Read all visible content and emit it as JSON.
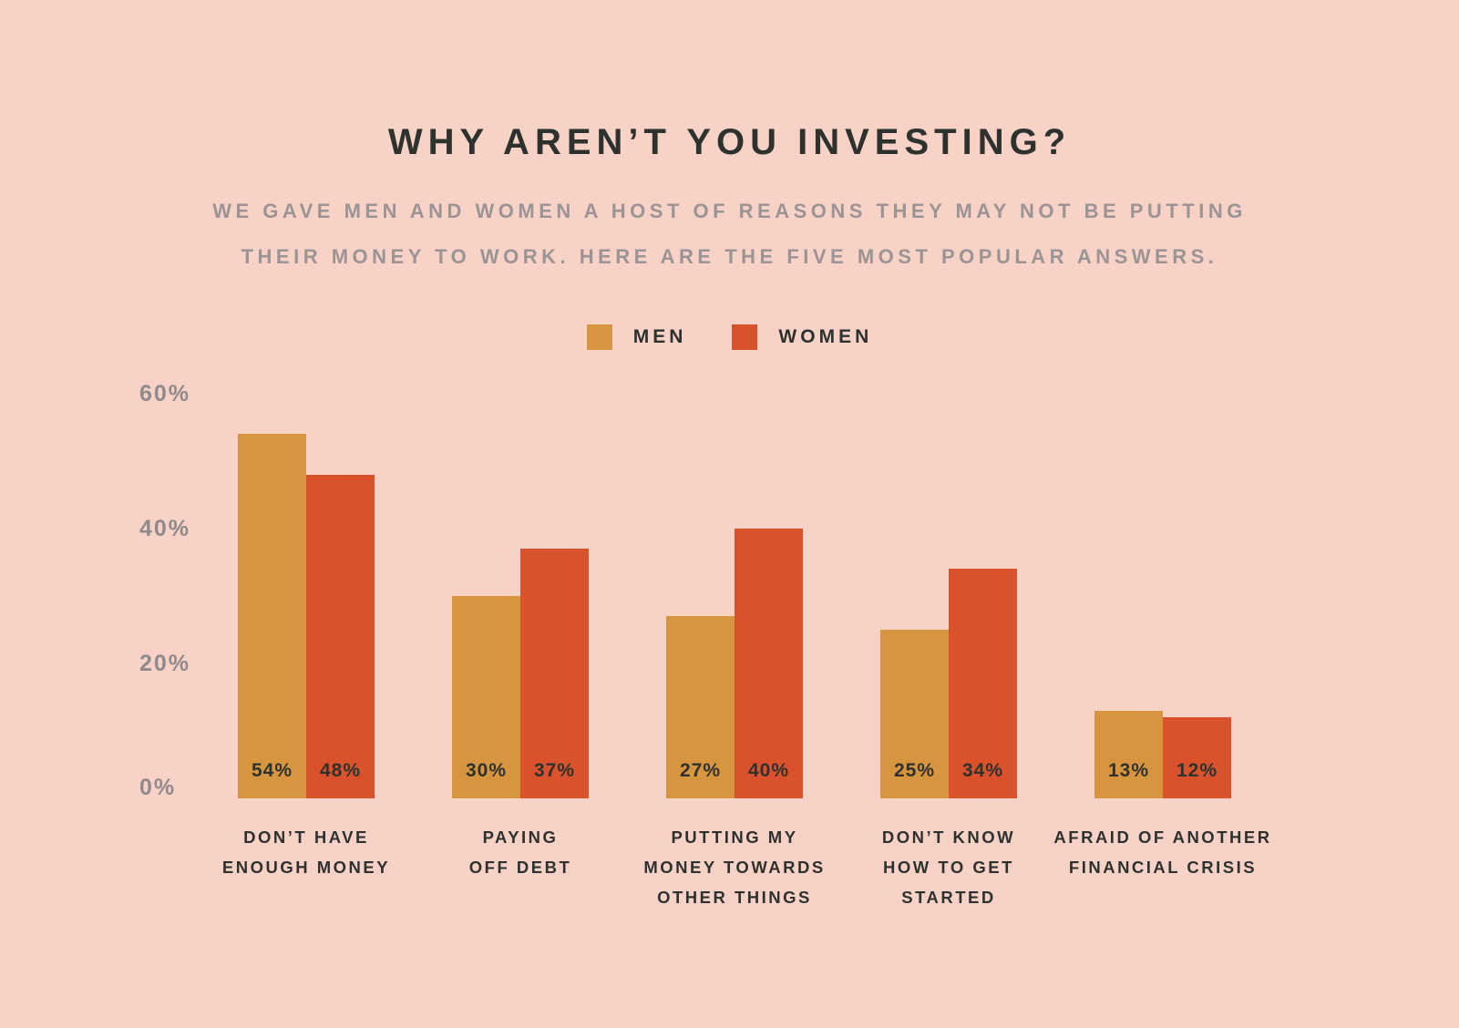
{
  "header": {
    "title": "WHY AREN’T YOU INVESTING?",
    "subtitle_line1": "WE GAVE MEN AND WOMEN A HOST OF REASONS THEY MAY NOT BE PUTTING",
    "subtitle_line2": "THEIR MONEY TO WORK. HERE ARE THE FIVE MOST POPULAR ANSWERS."
  },
  "legend": [
    {
      "label": "MEN",
      "color": "#D8953F"
    },
    {
      "label": "WOMEN",
      "color": "#D9522B"
    }
  ],
  "colors": {
    "background": "#F8D2C6",
    "title_text": "#2D322F",
    "subtitle_text": "#9B9495",
    "axis_text": "#8F8A8B",
    "value_text": "#2D322F"
  },
  "chart_data": {
    "type": "bar",
    "title": "WHY AREN’T YOU INVESTING?",
    "categories": [
      [
        "DON’T HAVE",
        "ENOUGH MONEY"
      ],
      [
        "PAYING",
        "OFF DEBT"
      ],
      [
        "PUTTING MY",
        "MONEY TOWARDS",
        "OTHER THINGS"
      ],
      [
        "DON’T KNOW",
        "HOW TO GET",
        "STARTED"
      ],
      [
        "AFRAID OF ANOTHER",
        "FINANCIAL CRISIS"
      ]
    ],
    "series": [
      {
        "name": "MEN",
        "color": "#D8953F",
        "values": [
          54,
          30,
          27,
          25,
          13
        ]
      },
      {
        "name": "WOMEN",
        "color": "#D9522B",
        "values": [
          48,
          37,
          40,
          34,
          12
        ]
      }
    ],
    "value_label_suffix": "%",
    "ylim": [
      0,
      60
    ],
    "y_ticks": [
      {
        "label": "60%",
        "value": 60
      },
      {
        "label": "40%",
        "value": 40
      },
      {
        "label": "20%",
        "value": 20
      },
      {
        "label": "0%",
        "value": 0
      }
    ],
    "grid": false,
    "legend_position": "top-center"
  }
}
